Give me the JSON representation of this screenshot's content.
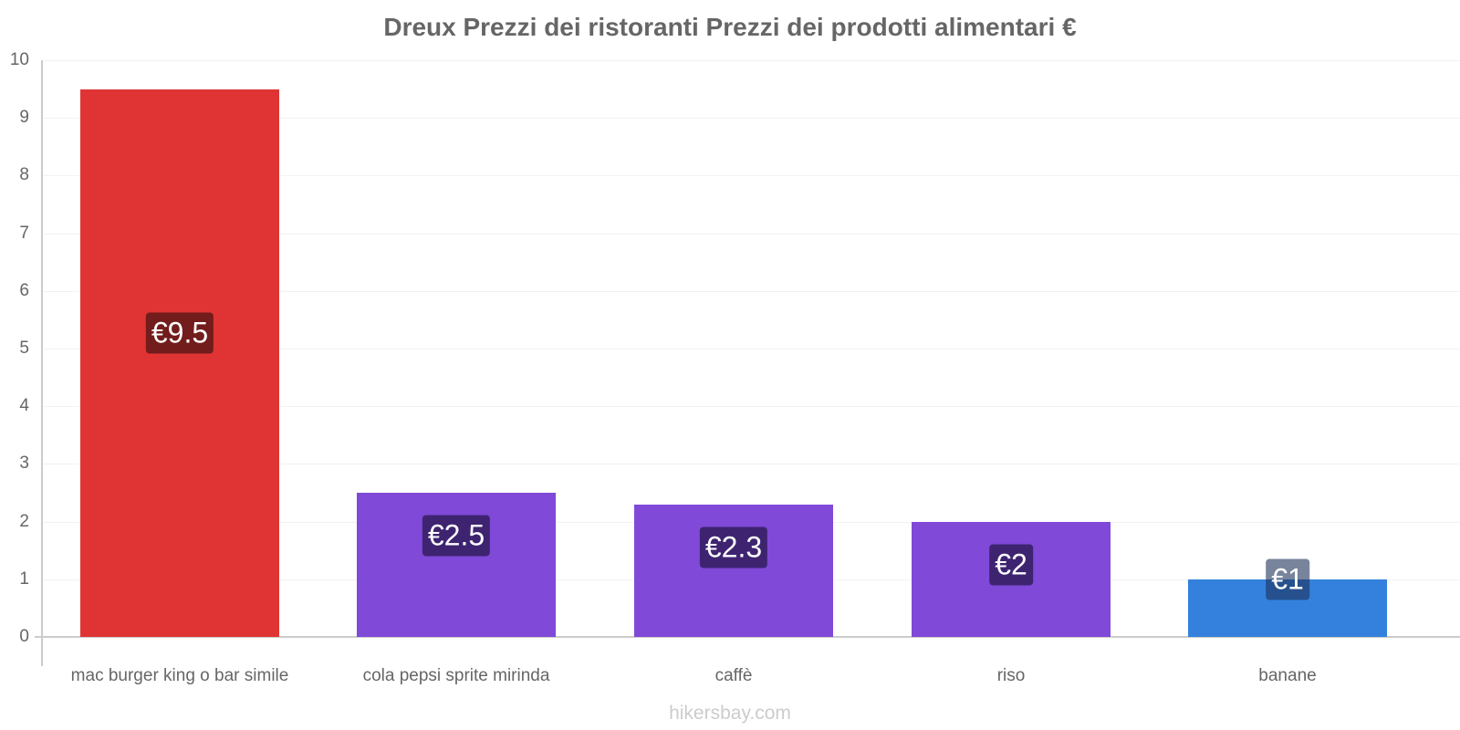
{
  "title": "Dreux Prezzi dei ristoranti Prezzi dei prodotti alimentari €",
  "watermark": "hikersbay.com",
  "y_ticks": [
    "0",
    "1",
    "2",
    "3",
    "4",
    "5",
    "6",
    "7",
    "8",
    "9",
    "10"
  ],
  "bars": [
    {
      "category": "mac burger king o bar simile",
      "value": 9.5,
      "label": "€9.5",
      "color": "#e03434",
      "label_bg": "#721c1c"
    },
    {
      "category": "cola pepsi sprite mirinda",
      "value": 2.5,
      "label": "€2.5",
      "color": "#8049d8",
      "label_bg": "#3e2470"
    },
    {
      "category": "caffè",
      "value": 2.3,
      "label": "€2.3",
      "color": "#8049d8",
      "label_bg": "#3e2470"
    },
    {
      "category": "riso",
      "value": 2,
      "label": "€2",
      "color": "#8049d8",
      "label_bg": "#3e2470"
    },
    {
      "category": "banane",
      "value": 1,
      "label": "€1",
      "color": "#3381dc",
      "label_bg": "rgba(30,50,90,0.6)"
    }
  ],
  "chart_data": {
    "type": "bar",
    "title": "Dreux Prezzi dei ristoranti Prezzi dei prodotti alimentari €",
    "categories": [
      "mac burger king o bar simile",
      "cola pepsi sprite mirinda",
      "caffè",
      "riso",
      "banane"
    ],
    "values": [
      9.5,
      2.5,
      2.3,
      2,
      1
    ],
    "data_labels": [
      "€9.5",
      "€2.5",
      "€2.3",
      "€2",
      "€1"
    ],
    "colors": [
      "#e03434",
      "#8049d8",
      "#8049d8",
      "#8049d8",
      "#3381dc"
    ],
    "xlabel": "",
    "ylabel": "",
    "ylim": [
      0,
      10
    ],
    "y_ticks": [
      0,
      1,
      2,
      3,
      4,
      5,
      6,
      7,
      8,
      9,
      10
    ],
    "grid": true,
    "legend": "none"
  }
}
